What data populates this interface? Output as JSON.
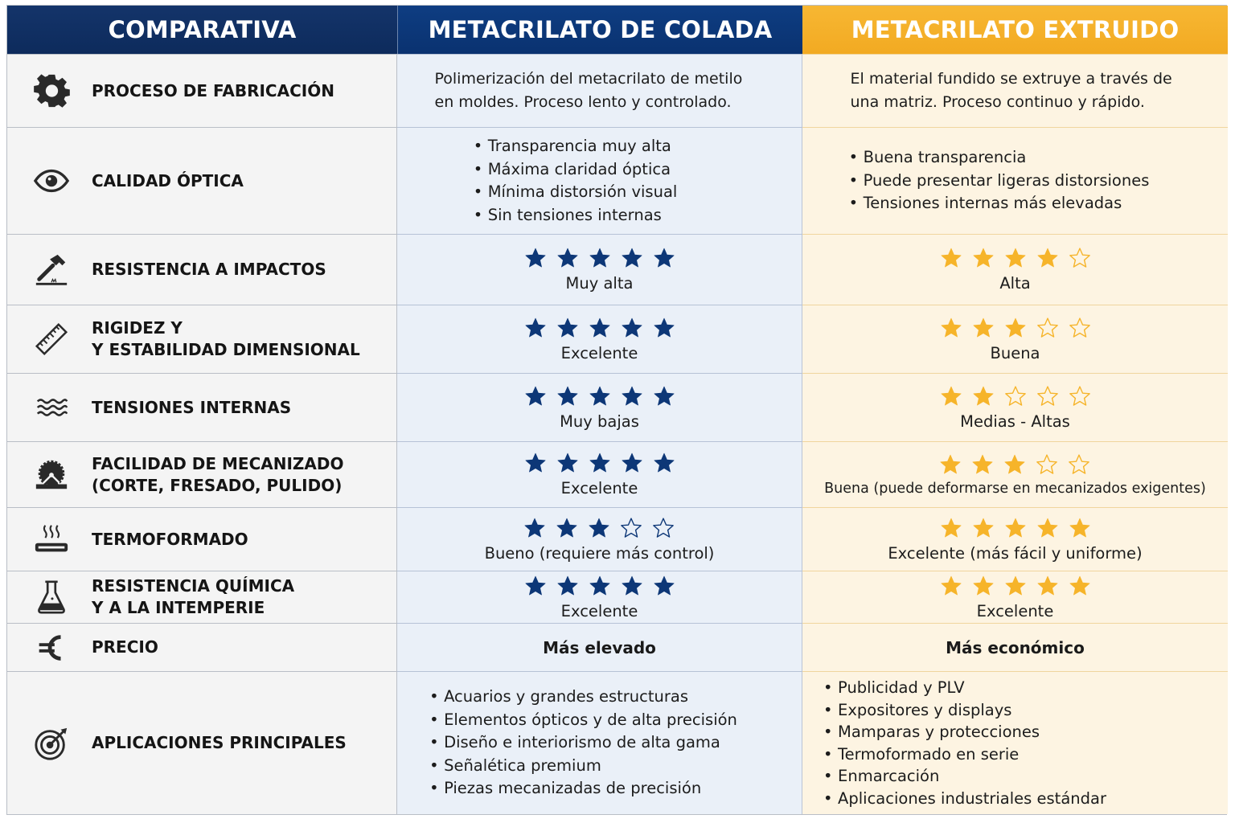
{
  "colors": {
    "colada_header": "#0d3777",
    "extruido_header": "#f4ad27",
    "label_header": "#0f2f63",
    "colada_star": "#0d3777",
    "extruido_star": "#f6b42a",
    "colada_bg": "#eaf0f8",
    "extruido_bg": "#fdf4e2",
    "label_bg": "#f4f4f4"
  },
  "headers": {
    "comparativa": "COMPARATIVA",
    "colada": "METACRILATO DE COLADA",
    "extruido": "METACRILATO EXTRUIDO"
  },
  "rows": [
    {
      "icon": "gear-icon",
      "label": "PROCESO DE FABRICACIÓN",
      "colada": {
        "text": "Polimerización del metacrilato de metilo en moldes. Proceso lento y controlado."
      },
      "extruido": {
        "text": "El material fundido se extruye a través de una matriz. Proceso continuo y rápido."
      }
    },
    {
      "icon": "eye-icon",
      "label": "CALIDAD ÓPTICA",
      "colada": {
        "bullets": [
          "Transparencia muy alta",
          "Máxima claridad óptica",
          "Mínima distorsión visual",
          "Sin tensiones internas"
        ]
      },
      "extruido": {
        "bullets": [
          "Buena transparencia",
          "Puede presentar ligeras distorsiones",
          "Tensiones internas más elevadas"
        ]
      }
    },
    {
      "icon": "hammer-icon",
      "label": "RESISTENCIA A IMPACTOS",
      "colada": {
        "stars": 5,
        "max": 5,
        "rating": "Muy alta"
      },
      "extruido": {
        "stars": 4,
        "max": 5,
        "rating": "Alta"
      }
    },
    {
      "icon": "ruler-icon",
      "label": "RIGIDEZ Y\nY ESTABILIDAD DIMENSIONAL",
      "colada": {
        "stars": 5,
        "max": 5,
        "rating": "Excelente"
      },
      "extruido": {
        "stars": 3,
        "max": 5,
        "rating": "Buena"
      }
    },
    {
      "icon": "waves-icon",
      "label": "TENSIONES INTERNAS",
      "colada": {
        "stars": 5,
        "max": 5,
        "rating": "Muy bajas"
      },
      "extruido": {
        "stars": 2,
        "max": 5,
        "rating": "Medias - Altas"
      }
    },
    {
      "icon": "saw-blade-icon",
      "label": "FACILIDAD DE MECANIZADO\n(CORTE, FRESADO, PULIDO)",
      "colada": {
        "stars": 5,
        "max": 5,
        "rating": "Excelente"
      },
      "extruido": {
        "stars": 3,
        "max": 5,
        "rating": "Buena (puede deformarse en mecanizados exigentes)"
      }
    },
    {
      "icon": "heat-icon",
      "label": "TERMOFORMADO",
      "colada": {
        "stars": 3,
        "max": 5,
        "rating": "Bueno (requiere más control)"
      },
      "extruido": {
        "stars": 5,
        "max": 5,
        "rating": "Excelente (más fácil y uniforme)"
      }
    },
    {
      "icon": "flask-icon",
      "label": "RESISTENCIA QUÍMICA\nY A LA INTEMPERIE",
      "colada": {
        "stars": 5,
        "max": 5,
        "rating": "Excelente"
      },
      "extruido": {
        "stars": 5,
        "max": 5,
        "rating": "Excelente"
      }
    },
    {
      "icon": "euro-icon",
      "label": "PRECIO",
      "colada": {
        "price": "Más elevado"
      },
      "extruido": {
        "price": "Más económico"
      }
    },
    {
      "icon": "target-icon",
      "label": "APLICACIONES PRINCIPALES",
      "colada": {
        "bullets": [
          "Acuarios y grandes estructuras",
          "Elementos ópticos y de alta precisión",
          "Diseño e interiorismo de alta gama",
          "Señalética premium",
          "Piezas mecanizadas de precisión"
        ]
      },
      "extruido": {
        "bullets": [
          "Publicidad y PLV",
          "Expositores y displays",
          "Mamparas y protecciones",
          "Termoformado en serie",
          "Enmarcación",
          "Aplicaciones industriales estándar"
        ]
      }
    }
  ]
}
